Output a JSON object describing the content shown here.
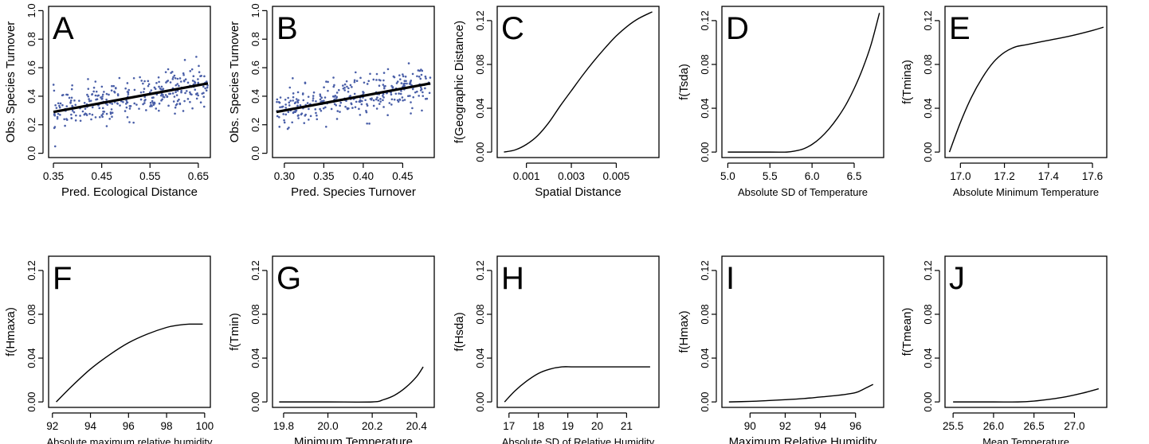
{
  "chart_data": [
    {
      "panel_label": "A",
      "type": "scatter",
      "xlabel": "Pred. Ecological Distance",
      "ylabel": "Obs. Species Turnover",
      "xlim": [
        0.34,
        0.675
      ],
      "ylim": [
        -0.03,
        1.03
      ],
      "xticks": [
        0.35,
        0.45,
        0.55,
        0.65
      ],
      "xtick_labels": [
        "0.35",
        "0.45",
        "0.55",
        "0.65"
      ],
      "yticks": [
        0.0,
        0.2,
        0.4,
        0.6,
        0.8,
        1.0
      ],
      "ytick_labels": [
        "0.0",
        "0.2",
        "0.4",
        "0.6",
        "0.8",
        "1.0"
      ],
      "point_color": "#4a5fa8",
      "point_count": 320,
      "fit_line": {
        "x": [
          0.35,
          0.67
        ],
        "y": [
          0.29,
          0.49
        ]
      },
      "x": [
        0.35,
        0.38,
        0.42,
        0.45,
        0.48,
        0.52,
        0.55,
        0.58,
        0.62,
        0.65
      ],
      "y": [
        0.3,
        0.32,
        0.35,
        0.37,
        0.38,
        0.41,
        0.43,
        0.45,
        0.47,
        0.49
      ]
    },
    {
      "panel_label": "B",
      "type": "scatter",
      "xlabel": "Pred. Species Turnover",
      "ylabel": "Obs. Species Turnover",
      "xlim": [
        0.285,
        0.49
      ],
      "ylim": [
        -0.03,
        1.03
      ],
      "xticks": [
        0.3,
        0.35,
        0.4,
        0.45
      ],
      "xtick_labels": [
        "0.30",
        "0.35",
        "0.40",
        "0.45"
      ],
      "yticks": [
        0.0,
        0.2,
        0.4,
        0.6,
        0.8,
        1.0
      ],
      "ytick_labels": [
        "0.0",
        "0.2",
        "0.4",
        "0.6",
        "0.8",
        "1.0"
      ],
      "point_color": "#4a5fa8",
      "point_count": 320,
      "fit_line": {
        "x": [
          0.29,
          0.485
        ],
        "y": [
          0.29,
          0.49
        ]
      },
      "x": [
        0.29,
        0.31,
        0.33,
        0.35,
        0.37,
        0.39,
        0.41,
        0.43,
        0.45,
        0.48
      ],
      "y": [
        0.29,
        0.31,
        0.33,
        0.35,
        0.37,
        0.39,
        0.41,
        0.43,
        0.45,
        0.48
      ]
    },
    {
      "panel_label": "C",
      "type": "line",
      "xlabel": "Spatial Distance",
      "ylabel": "f(Geographic Distance)",
      "xlim": [
        -0.0003,
        0.0069
      ],
      "ylim": [
        -0.005,
        0.133
      ],
      "xticks": [
        0.001,
        0.003,
        0.005
      ],
      "xtick_labels": [
        "0.001",
        "0.003",
        "0.005"
      ],
      "yticks": [
        0.0,
        0.04,
        0.08,
        0.12
      ],
      "ytick_labels": [
        "0.00",
        "0.04",
        "0.08",
        "0.12"
      ],
      "x": [
        0,
        0.0005,
        0.001,
        0.0015,
        0.002,
        0.0025,
        0.003,
        0.0035,
        0.004,
        0.0045,
        0.005,
        0.0055,
        0.006,
        0.0066
      ],
      "y": [
        0,
        0.002,
        0.007,
        0.015,
        0.027,
        0.042,
        0.056,
        0.07,
        0.083,
        0.095,
        0.106,
        0.115,
        0.122,
        0.128
      ]
    },
    {
      "panel_label": "D",
      "type": "line",
      "xlabel": "Absolute SD of Temperature",
      "ylabel": "f(Tsda)",
      "xlim": [
        4.93,
        6.85
      ],
      "ylim": [
        -0.005,
        0.133
      ],
      "xticks": [
        5.0,
        5.5,
        6.0,
        6.5
      ],
      "xtick_labels": [
        "5.0",
        "5.5",
        "6.0",
        "6.5"
      ],
      "yticks": [
        0.0,
        0.04,
        0.08,
        0.12
      ],
      "ytick_labels": [
        "0.00",
        "0.04",
        "0.08",
        "0.12"
      ],
      "x": [
        5.0,
        5.5,
        5.7,
        5.8,
        5.9,
        6.0,
        6.1,
        6.2,
        6.3,
        6.4,
        6.5,
        6.6,
        6.7,
        6.8
      ],
      "y": [
        0,
        0,
        0,
        0.001,
        0.003,
        0.007,
        0.013,
        0.021,
        0.031,
        0.043,
        0.058,
        0.076,
        0.098,
        0.127
      ]
    },
    {
      "panel_label": "E",
      "type": "line",
      "xlabel": "Absolute Minimum Temperature",
      "ylabel": "f(Tmina)",
      "xlim": [
        16.93,
        17.665
      ],
      "ylim": [
        -0.005,
        0.133
      ],
      "xticks": [
        17.0,
        17.2,
        17.4,
        17.6
      ],
      "xtick_labels": [
        "17.0",
        "17.2",
        "17.4",
        "17.6"
      ],
      "yticks": [
        0.0,
        0.04,
        0.08,
        0.12
      ],
      "ytick_labels": [
        "0.00",
        "0.04",
        "0.08",
        "0.12"
      ],
      "x": [
        16.95,
        17.0,
        17.05,
        17.1,
        17.15,
        17.2,
        17.25,
        17.3,
        17.4,
        17.5,
        17.6,
        17.65
      ],
      "y": [
        0,
        0.027,
        0.05,
        0.068,
        0.082,
        0.091,
        0.096,
        0.098,
        0.102,
        0.106,
        0.111,
        0.114
      ]
    },
    {
      "panel_label": "F",
      "type": "line",
      "xlabel": "Absolute maximum relative humidity",
      "ylabel": "f(Hmaxa)",
      "xlim": [
        91.8,
        100.3
      ],
      "ylim": [
        -0.005,
        0.133
      ],
      "xticks": [
        92,
        94,
        96,
        98,
        100
      ],
      "xtick_labels": [
        "92",
        "94",
        "96",
        "98",
        "100"
      ],
      "yticks": [
        0.0,
        0.04,
        0.08,
        0.12
      ],
      "ytick_labels": [
        "0.00",
        "0.04",
        "0.08",
        "0.12"
      ],
      "x": [
        92.2,
        93,
        94,
        95,
        96,
        97,
        98,
        98.6,
        99.2,
        99.9
      ],
      "y": [
        0,
        0.014,
        0.03,
        0.043,
        0.054,
        0.062,
        0.068,
        0.07,
        0.071,
        0.071
      ]
    },
    {
      "panel_label": "G",
      "type": "line",
      "xlabel": "Minimum Temperature",
      "ylabel": "f(Tmin)",
      "xlim": [
        19.75,
        20.48
      ],
      "ylim": [
        -0.005,
        0.133
      ],
      "xticks": [
        19.8,
        20.0,
        20.2,
        20.4
      ],
      "xtick_labels": [
        "19.8",
        "20.0",
        "20.2",
        "20.4"
      ],
      "yticks": [
        0.0,
        0.04,
        0.08,
        0.12
      ],
      "ytick_labels": [
        "0.00",
        "0.04",
        "0.08",
        "0.12"
      ],
      "x": [
        19.78,
        20.0,
        20.2,
        20.25,
        20.3,
        20.35,
        20.4,
        20.43
      ],
      "y": [
        0,
        0,
        0,
        0.002,
        0.006,
        0.013,
        0.023,
        0.032
      ]
    },
    {
      "panel_label": "H",
      "type": "line",
      "xlabel": "Absolute SD of Relative Humidity",
      "ylabel": "f(Hsda)",
      "xlim": [
        16.6,
        22.1
      ],
      "ylim": [
        -0.005,
        0.133
      ],
      "xticks": [
        17,
        18,
        19,
        20,
        21
      ],
      "xtick_labels": [
        "17",
        "18",
        "19",
        "20",
        "21"
      ],
      "yticks": [
        0.0,
        0.04,
        0.08,
        0.12
      ],
      "ytick_labels": [
        "0.00",
        "0.04",
        "0.08",
        "0.12"
      ],
      "x": [
        16.85,
        17.2,
        17.6,
        18.0,
        18.4,
        18.8,
        19.2,
        20.0,
        21.0,
        21.8
      ],
      "y": [
        0,
        0.01,
        0.019,
        0.026,
        0.03,
        0.032,
        0.032,
        0.032,
        0.032,
        0.032
      ]
    },
    {
      "panel_label": "I",
      "type": "line",
      "xlabel": "Maximum Relative Humidity",
      "ylabel": "f(Hmax)",
      "xlim": [
        88.4,
        97.6
      ],
      "ylim": [
        -0.005,
        0.133
      ],
      "xticks": [
        90,
        92,
        94,
        96
      ],
      "xtick_labels": [
        "90",
        "92",
        "94",
        "96"
      ],
      "yticks": [
        0.0,
        0.04,
        0.08,
        0.12
      ],
      "ytick_labels": [
        "0.00",
        "0.04",
        "0.08",
        "0.12"
      ],
      "x": [
        88.8,
        90,
        91,
        92,
        93,
        94,
        95,
        96,
        96.5,
        97.0
      ],
      "y": [
        0,
        0.0005,
        0.0012,
        0.002,
        0.003,
        0.0045,
        0.006,
        0.0085,
        0.012,
        0.016
      ]
    },
    {
      "panel_label": "J",
      "type": "line",
      "xlabel": "Mean Temperature",
      "ylabel": "f(Tmean)",
      "xlim": [
        25.4,
        27.4
      ],
      "ylim": [
        -0.005,
        0.133
      ],
      "xticks": [
        25.5,
        26.0,
        26.5,
        27.0
      ],
      "xtick_labels": [
        "25.5",
        "26.0",
        "26.5",
        "27.0"
      ],
      "yticks": [
        0.0,
        0.04,
        0.08,
        0.12
      ],
      "ytick_labels": [
        "0.00",
        "0.04",
        "0.08",
        "0.12"
      ],
      "x": [
        25.5,
        26.0,
        26.3,
        26.5,
        26.7,
        26.9,
        27.1,
        27.3
      ],
      "y": [
        0,
        0,
        0,
        0.0008,
        0.0025,
        0.0048,
        0.008,
        0.012
      ]
    }
  ]
}
